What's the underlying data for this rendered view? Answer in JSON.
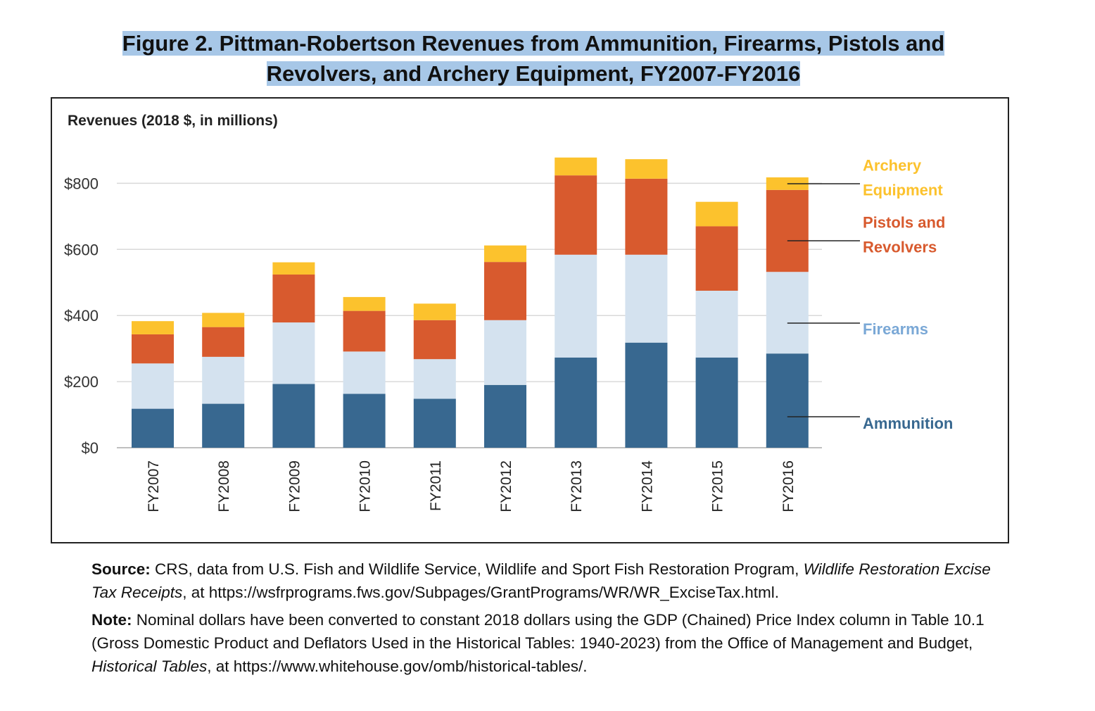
{
  "figure": {
    "title_line1": "Figure 2. Pittman-Robertson Revenues from Ammunition, Firearms, Pistols and",
    "title_line2": "Revolvers, and Archery Equipment, FY2007-FY2016"
  },
  "colors": {
    "ammunition": "#386890",
    "firearms": "#d4e2ef",
    "pistols": "#d85a2e",
    "archery": "#fcc22d",
    "firearms_label": "#7aa8d6",
    "grid": "#d9d9d9"
  },
  "chart_data": {
    "type": "bar",
    "stacked": true,
    "ylabel": "Revenues (2018 $, in millions)",
    "ylim": [
      0,
      900
    ],
    "yticks": [
      0,
      200,
      400,
      600,
      800
    ],
    "ytick_labels": [
      "$0",
      "$200",
      "$400",
      "$600",
      "$800"
    ],
    "grid": true,
    "legend": "right, labels with leader lines",
    "categories": [
      "FY2007",
      "FY2008",
      "FY2009",
      "FY2010",
      "FY2011",
      "FY2012",
      "FY2013",
      "FY2014",
      "FY2015",
      "FY2016"
    ],
    "series": [
      {
        "name": "Ammunition",
        "values": [
          118,
          133,
          193,
          163,
          148,
          190,
          273,
          318,
          273,
          285
        ]
      },
      {
        "name": "Firearms",
        "values": [
          137,
          142,
          186,
          128,
          120,
          196,
          311,
          266,
          202,
          247
        ]
      },
      {
        "name": "Pistols and Revolvers",
        "values": [
          88,
          90,
          145,
          123,
          118,
          176,
          240,
          230,
          195,
          248
        ]
      },
      {
        "name": "Archery Equipment",
        "values": [
          40,
          43,
          37,
          42,
          50,
          50,
          54,
          59,
          74,
          38
        ]
      }
    ],
    "legend_labels": [
      {
        "series": "Archery Equipment",
        "lines": [
          "Archery",
          "Equipment"
        ]
      },
      {
        "series": "Pistols and Revolvers",
        "lines": [
          "Pistols and",
          "Revolvers"
        ]
      },
      {
        "series": "Firearms",
        "lines": [
          "Firearms"
        ]
      },
      {
        "series": "Ammunition",
        "lines": [
          "Ammunition"
        ]
      }
    ]
  },
  "notes": {
    "source_label": "Source:",
    "source_text1": " CRS, data from U.S. Fish and Wildlife Service, Wildlife and Sport Fish Restoration Program, ",
    "source_italic": "Wildlife Restoration Excise Tax Receipts",
    "source_text2": ", at https://wsfrprograms.fws.gov/Subpages/GrantPrograms/WR/WR_ExciseTax.html.",
    "note_label": "Note:",
    "note_text1": " Nominal dollars have been converted to constant 2018 dollars using the GDP (Chained) Price Index column in Table 10.1 (Gross Domestic Product and Deflators Used in the Historical Tables: 1940-2023) from the Office of Management and Budget, ",
    "note_italic": "Historical Tables",
    "note_text2": ", at https://www.whitehouse.gov/omb/historical-tables/."
  }
}
